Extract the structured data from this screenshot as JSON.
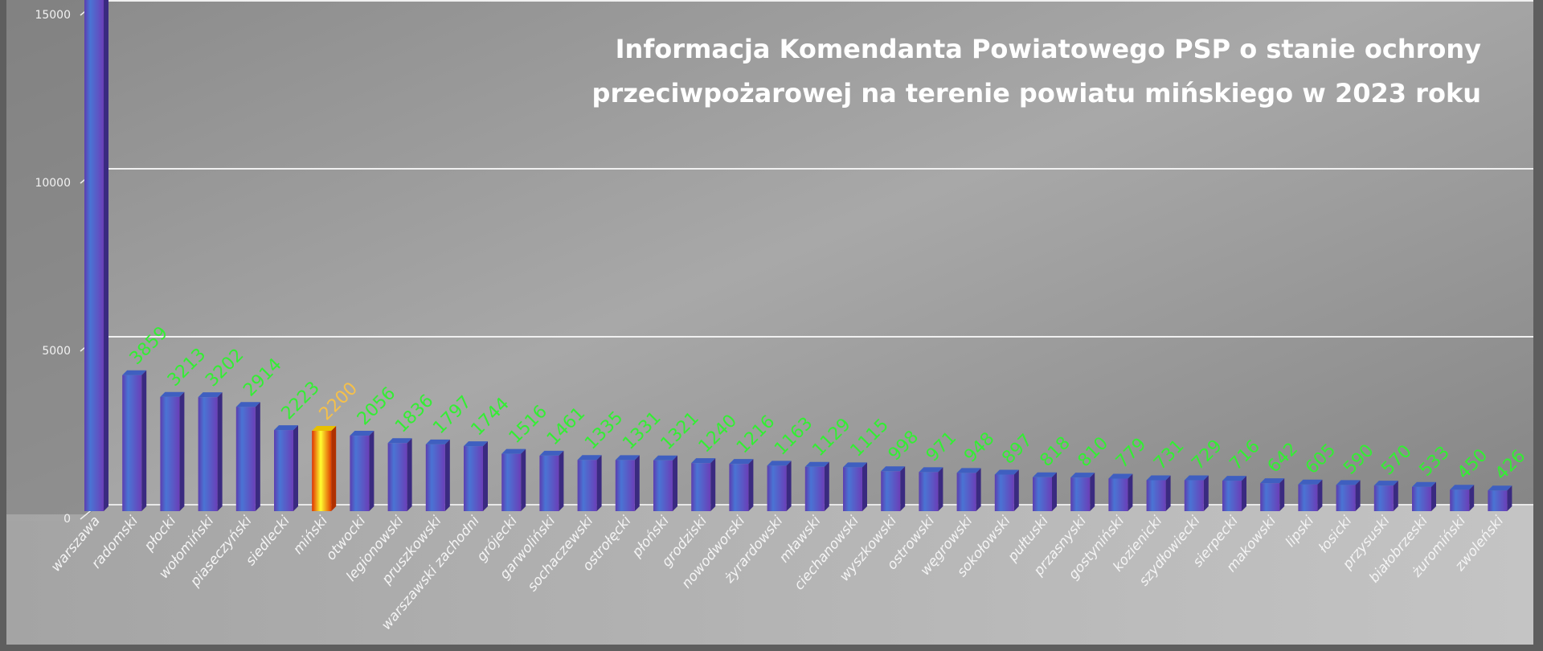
{
  "chart_data": {
    "type": "bar",
    "title": "Informacja Komendanta Powiatowego PSP o stanie ochrony przeciwpożarowej na terenie powiatu mińskiego w 2023 roku",
    "title_lines": [
      "Informacja Komendanta Powiatowego PSP o stanie ochrony",
      "przeciwpożarowej na terenie powiatu mińskiego w 2023 roku"
    ],
    "xlabel": "",
    "ylabel": "",
    "ylim": [
      0,
      15000
    ],
    "yticks": [
      0,
      5000,
      10000,
      15000
    ],
    "grid": true,
    "three_d": true,
    "categories": [
      "warszawa",
      "radomski",
      "płocki",
      "wołomiński",
      "piaseczyński",
      "siedlecki",
      "miński",
      "otwocki",
      "legionowski",
      "pruszkowski",
      "warszawski zachodni",
      "grójecki",
      "garwoliński",
      "sochaczewski",
      "ostrołęcki",
      "płoński",
      "grodziski",
      "nowodworski",
      "żyrardowski",
      "mławski",
      "ciechanowski",
      "wyszkowski",
      "ostrowski",
      "węgrowski",
      "sokołowski",
      "pułtuski",
      "przasnyski",
      "gostyniński",
      "kozienicki",
      "szydłowiecki",
      "sierpecki",
      "makowski",
      "lipski",
      "łosicki",
      "przysuski",
      "białobrzeski",
      "żuromiński",
      "zwoleński"
    ],
    "values": [
      null,
      3859,
      3213,
      3202,
      2914,
      2223,
      2200,
      2056,
      1836,
      1797,
      1744,
      1516,
      1461,
      1335,
      1331,
      1321,
      1240,
      1216,
      1163,
      1129,
      1115,
      998,
      971,
      948,
      897,
      818,
      810,
      779,
      731,
      729,
      716,
      642,
      605,
      590,
      570,
      533,
      450,
      426
    ],
    "highlight_category": "miński",
    "colors": {
      "bar": "#4a6fd0",
      "bar_side": "#3a2a80",
      "highlight_bar": "#ffd000",
      "highlight_edge": "#e03000",
      "data_label": "#33ee33",
      "highlight_label": "#f5c04a",
      "gridline": "#f0f0f0",
      "background": "#9a9a9a"
    }
  }
}
